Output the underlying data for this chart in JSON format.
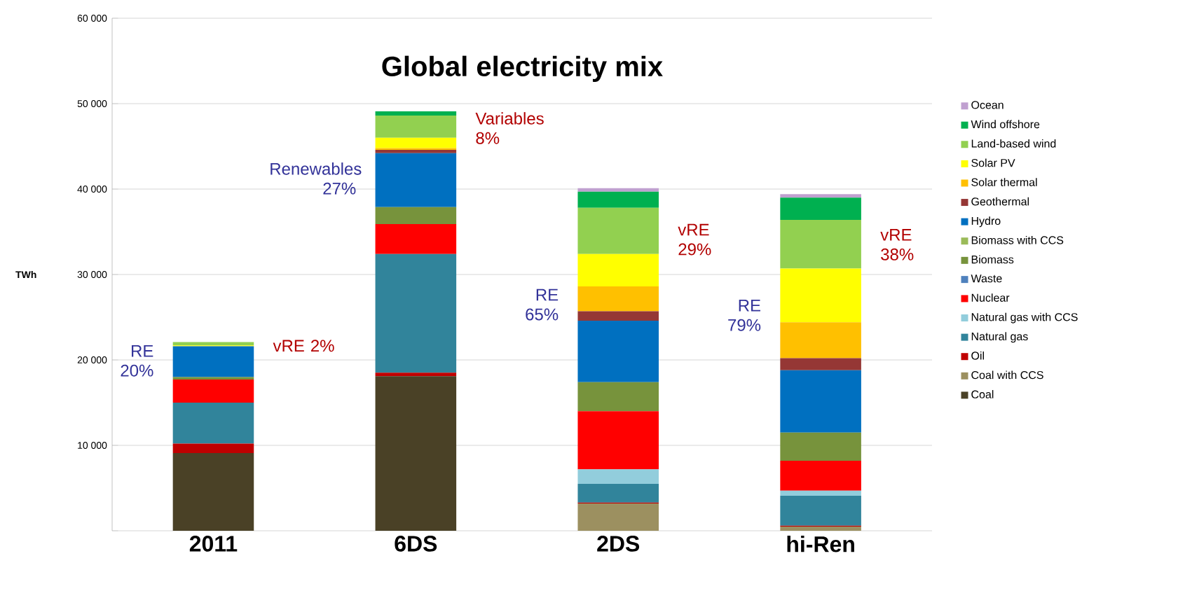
{
  "chart_data": {
    "type": "bar",
    "stacked": true,
    "title": "Global electricity mix",
    "ylabel": "TWh",
    "categories": [
      "2011",
      "6DS",
      "2DS",
      "hi-Ren"
    ],
    "series": [
      {
        "name": "Coal",
        "color": "#4a4126",
        "values": [
          9100,
          18100,
          0,
          0
        ]
      },
      {
        "name": "Coal with CCS",
        "color": "#9c9060",
        "values": [
          0,
          0,
          3200,
          500
        ]
      },
      {
        "name": "Oil",
        "color": "#c00000",
        "values": [
          1100,
          400,
          100,
          100
        ]
      },
      {
        "name": "Natural gas",
        "color": "#31849b",
        "values": [
          4800,
          13900,
          2200,
          3500
        ]
      },
      {
        "name": "Natural gas with CCS",
        "color": "#92cddc",
        "values": [
          0,
          0,
          1700,
          600
        ]
      },
      {
        "name": "Nuclear",
        "color": "#ff0000",
        "values": [
          2700,
          3500,
          6800,
          3500
        ]
      },
      {
        "name": "Waste",
        "color": "#4f81bd",
        "values": [
          0,
          0,
          0,
          0
        ]
      },
      {
        "name": "Biomass",
        "color": "#77933c",
        "values": [
          300,
          2000,
          3400,
          3300
        ]
      },
      {
        "name": "Biomass with CCS",
        "color": "#9bbb59",
        "values": [
          0,
          0,
          0,
          0
        ]
      },
      {
        "name": "Hydro",
        "color": "#0070c0",
        "values": [
          3600,
          6300,
          7200,
          7300
        ]
      },
      {
        "name": "Geothermal",
        "color": "#953735",
        "values": [
          0,
          400,
          1100,
          1400
        ]
      },
      {
        "name": "Solar thermal",
        "color": "#ffc000",
        "values": [
          0,
          200,
          2900,
          4200
        ]
      },
      {
        "name": "Solar PV",
        "color": "#ffff00",
        "values": [
          100,
          1200,
          3800,
          6300
        ]
      },
      {
        "name": "Land-based wind",
        "color": "#92d050",
        "values": [
          400,
          2600,
          5400,
          5700
        ]
      },
      {
        "name": "Wind offshore",
        "color": "#00b050",
        "values": [
          0,
          500,
          1900,
          2600
        ]
      },
      {
        "name": "Ocean",
        "color": "#c0a0d0",
        "values": [
          0,
          0,
          400,
          400
        ]
      }
    ],
    "ylim": [
      0,
      60000
    ],
    "yticks": [
      {
        "value": 0,
        "label": null
      },
      {
        "value": 10000,
        "label": "10 000"
      },
      {
        "value": 20000,
        "label": "20 000"
      },
      {
        "value": 30000,
        "label": "30 000"
      },
      {
        "value": 40000,
        "label": "40 000"
      },
      {
        "value": 50000,
        "label": "50 000"
      },
      {
        "value": 60000,
        "label": "60 000"
      }
    ],
    "grid": "y",
    "legend": "right",
    "annotations": [
      "RE 20%",
      "vRE 2%",
      "Renewables 27%",
      "Variables 8%",
      "RE 65%",
      "vRE 29%",
      "RE 79%",
      "vRE 38%"
    ]
  }
}
